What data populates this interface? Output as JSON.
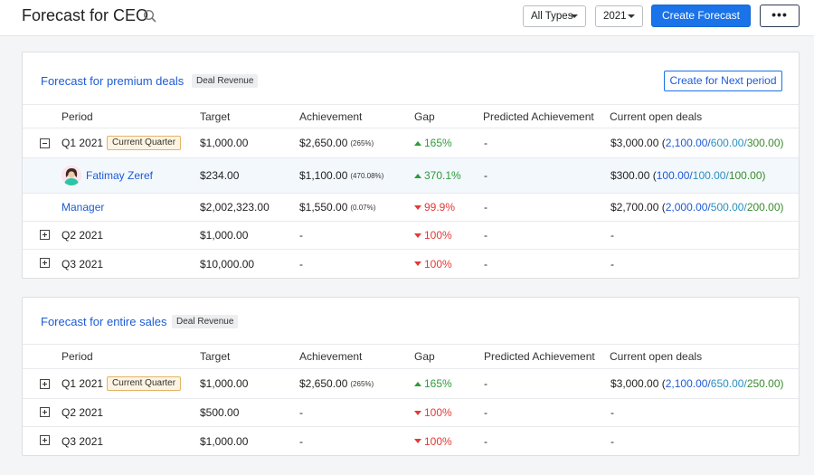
{
  "header": {
    "title": "Forecast for CEO",
    "type_filter": "All Types",
    "year_filter": "2021",
    "create_label": "Create Forecast",
    "more_label": "•••"
  },
  "columns": [
    "Period",
    "Target",
    "Achievement",
    "Gap",
    "Predicted Achievement",
    "Current open deals"
  ],
  "card1": {
    "title": "Forecast for premium deals",
    "tag": "Deal Revenue",
    "next_period_label": "Create for Next period",
    "rows": [
      {
        "period": "Q1 2021",
        "badge": "Current Quarter",
        "target": "$1,000.00",
        "achievement": "$2,650.00",
        "achievement_pct": "(265%)",
        "gap": "165%",
        "gap_dir": "up",
        "predicted": "-",
        "open_total": "$3,000.00 (",
        "open_a": "2,100.00/",
        "open_b": " 600.00/",
        "open_c": " 300.00)"
      },
      {
        "period": "Fatimay Zeref",
        "target": "$234.00",
        "achievement": "$1,100.00",
        "achievement_pct": "(470.08%)",
        "gap": "370.1%",
        "gap_dir": "up",
        "predicted": "-",
        "open_total": "$300.00 (",
        "open_a": "100.00/",
        "open_b": " 100.00/",
        "open_c": " 100.00)"
      },
      {
        "period": "Manager",
        "target": "$2,002,323.00",
        "achievement": "$1,550.00",
        "achievement_pct": "(0.07%)",
        "gap": "99.9%",
        "gap_dir": "down",
        "predicted": "-",
        "open_total": "$2,700.00 (",
        "open_a": "2,000.00/",
        "open_b": " 500.00/",
        "open_c": " 200.00)"
      },
      {
        "period": "Q2 2021",
        "target": "$1,000.00",
        "achievement": "-",
        "gap": "100%",
        "gap_dir": "down",
        "predicted": "-",
        "open": "-"
      },
      {
        "period": "Q3 2021",
        "target": "$10,000.00",
        "achievement": "-",
        "gap": "100%",
        "gap_dir": "down",
        "predicted": "-",
        "open": "-"
      }
    ]
  },
  "card2": {
    "title": "Forecast for entire sales",
    "tag": "Deal Revenue",
    "rows": [
      {
        "period": "Q1 2021",
        "badge": "Current Quarter",
        "target": "$1,000.00",
        "achievement": "$2,650.00",
        "achievement_pct": "(265%)",
        "gap": "165%",
        "gap_dir": "up",
        "predicted": "-",
        "open_total": "$3,000.00 (",
        "open_a": "2,100.00/",
        "open_b": " 650.00/",
        "open_c": " 250.00)"
      },
      {
        "period": "Q2 2021",
        "target": "$500.00",
        "achievement": "-",
        "gap": "100%",
        "gap_dir": "down",
        "predicted": "-",
        "open": "-"
      },
      {
        "period": "Q3 2021",
        "target": "$1,000.00",
        "achievement": "-",
        "gap": "100%",
        "gap_dir": "down",
        "predicted": "-",
        "open": "-"
      }
    ]
  },
  "colors": {
    "accent": "#1a73e8",
    "up": "#2e9b3a",
    "down": "#e53935",
    "badge_border": "#e2b468"
  },
  "icons": {
    "search": "search-icon",
    "collapse": "collapse-icon",
    "expand": "expand-icon",
    "avatar": "avatar"
  }
}
